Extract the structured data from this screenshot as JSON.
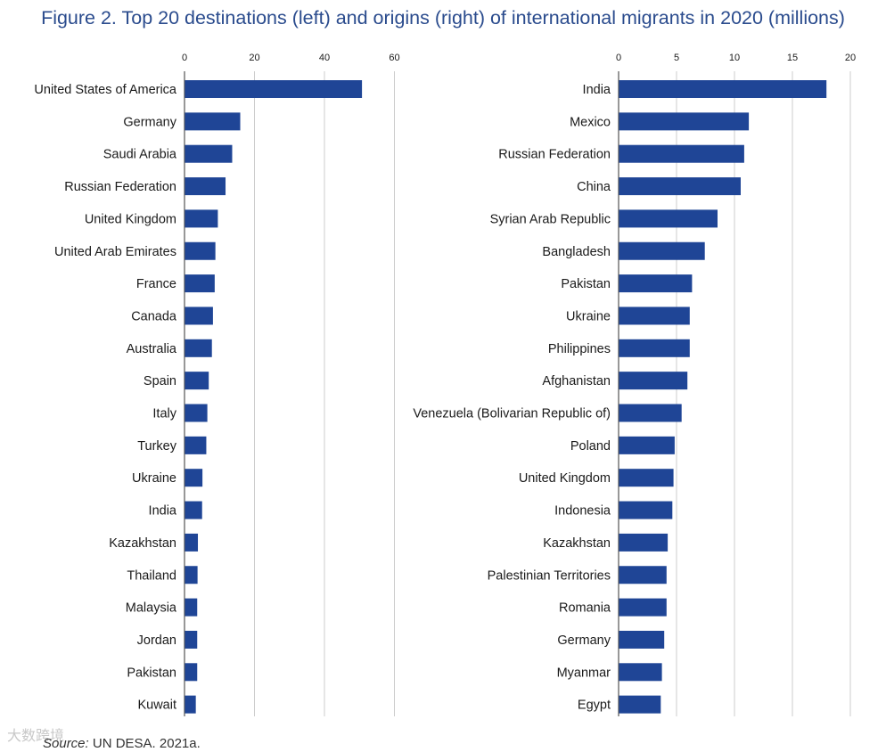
{
  "figure": {
    "title": "Figure 2. Top 20 destinations (left) and origins (right) of international migrants in 2020 (millions)",
    "source_label": "Source:",
    "source_text": " UN DESA. 2021a.",
    "watermark": "大数跨境"
  },
  "colors": {
    "bar": "#1f4596",
    "grid": "#cccccc",
    "axis": "#555555"
  },
  "chart_data": [
    {
      "type": "bar",
      "orientation": "horizontal",
      "title": "Top 20 destinations of international migrants in 2020 (millions)",
      "xlim": [
        0,
        60
      ],
      "xticks": [
        0,
        20,
        40,
        60
      ],
      "categories": [
        "United States of America",
        "Germany",
        "Saudi Arabia",
        "Russian Federation",
        "United Kingdom",
        "United Arab Emirates",
        "France",
        "Canada",
        "Australia",
        "Spain",
        "Italy",
        "Turkey",
        "Ukraine",
        "India",
        "Kazakhstan",
        "Thailand",
        "Malaysia",
        "Jordan",
        "Pakistan",
        "Kuwait"
      ],
      "values": [
        50.6,
        15.8,
        13.5,
        11.6,
        9.4,
        8.7,
        8.5,
        8.0,
        7.7,
        6.8,
        6.4,
        6.1,
        5.0,
        4.9,
        3.7,
        3.6,
        3.5,
        3.5,
        3.5,
        3.1
      ]
    },
    {
      "type": "bar",
      "orientation": "horizontal",
      "title": "Top 20 origins of international migrants in 2020 (millions)",
      "xlim": [
        0,
        20
      ],
      "xticks": [
        0,
        5,
        10,
        15,
        20
      ],
      "categories": [
        "India",
        "Mexico",
        "Russian Federation",
        "China",
        "Syrian Arab Republic",
        "Bangladesh",
        "Pakistan",
        "Ukraine",
        "Philippines",
        "Afghanistan",
        "Venezuela (Bolivarian Republic of)",
        "Poland",
        "United Kingdom",
        "Indonesia",
        "Kazakhstan",
        "Palestinian Territories",
        "Romania",
        "Germany",
        "Myanmar",
        "Egypt"
      ],
      "values": [
        17.9,
        11.2,
        10.8,
        10.5,
        8.5,
        7.4,
        6.3,
        6.1,
        6.1,
        5.9,
        5.4,
        4.8,
        4.7,
        4.6,
        4.2,
        4.1,
        4.1,
        3.9,
        3.7,
        3.6
      ]
    }
  ]
}
